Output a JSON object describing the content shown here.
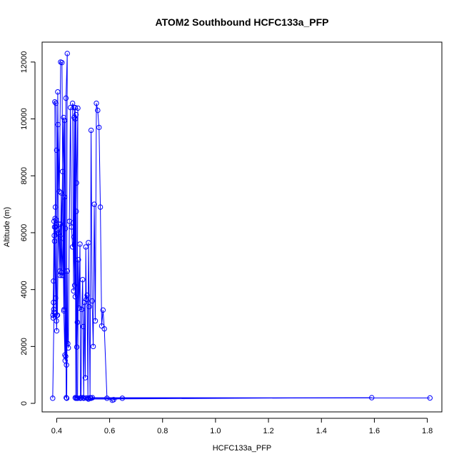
{
  "chart_data": {
    "type": "scatter",
    "title": "ATOM2 Southbound HCFC133a_PFP",
    "xlabel": "HCFC133a_PFP",
    "ylabel": "Altitude (m)",
    "xlim": [
      0.345,
      1.855
    ],
    "ylim": [
      -300,
      12700
    ],
    "x_ticks": [
      0.4,
      0.6,
      0.8,
      1.0,
      1.2,
      1.4,
      1.6,
      1.8
    ],
    "x_tick_labels": [
      "0.4",
      "0.6",
      "0.8",
      "1.0",
      "1.2",
      "1.4",
      "1.6",
      "1.8"
    ],
    "y_ticks": [
      0,
      2000,
      4000,
      6000,
      8000,
      10000,
      12000
    ],
    "y_tick_labels": [
      "0",
      "2000",
      "4000",
      "6000",
      "8000",
      "10000",
      "12000"
    ],
    "grid": false,
    "markers": "open circles connected by lines",
    "color": "#0000ff",
    "series": [
      {
        "x": [
          0.385,
          0.39,
          0.392,
          0.388,
          0.395,
          0.393,
          0.397,
          0.4,
          0.398,
          0.402,
          0.405,
          0.41,
          0.415,
          0.42,
          0.425,
          0.43,
          0.434,
          0.437,
          0.44,
          0.435,
          0.432,
          0.43,
          0.428,
          0.426,
          0.422,
          0.418,
          0.414,
          0.412,
          0.408,
          0.404,
          0.4,
          0.396,
          0.392,
          0.39,
          0.388,
          0.386,
          0.387,
          0.389,
          0.391,
          0.394,
          0.396,
          0.399,
          0.401,
          0.403,
          0.406,
          0.409,
          0.413,
          0.417,
          0.42,
          0.424,
          0.427,
          0.431,
          0.433,
          0.436,
          0.438,
          0.44,
          0.442,
          0.444,
          0.448,
          0.452,
          0.456,
          0.46,
          0.465,
          0.47,
          0.475,
          0.48,
          0.478,
          0.476,
          0.474,
          0.472,
          0.47,
          0.468,
          0.466,
          0.464,
          0.462,
          0.46,
          0.465,
          0.47,
          0.473,
          0.476,
          0.479,
          0.482,
          0.485,
          0.488,
          0.49,
          0.492,
          0.495,
          0.498,
          0.5,
          0.502,
          0.505,
          0.508,
          0.51,
          0.512,
          0.515,
          0.518,
          0.52,
          0.523,
          0.526,
          0.53,
          0.534,
          0.538,
          0.542,
          0.546,
          0.55,
          0.555,
          0.56,
          0.565,
          0.57,
          0.575,
          0.58,
          0.59,
          0.61,
          0.615,
          0.648,
          0.47,
          0.52,
          1.59,
          0.53,
          1.81,
          0.535,
          0.528,
          0.52,
          0.512,
          0.5,
          0.49,
          0.48
        ],
        "y": [
          180,
          3200,
          5700,
          3550,
          6900,
          10600,
          10550,
          8900,
          6450,
          6100,
          9800,
          7450,
          12000,
          11980,
          4500,
          9950,
          1650,
          1350,
          12300,
          10730,
          1500,
          7250,
          3300,
          10050,
          8150,
          4600,
          6300,
          4650,
          5950,
          10950,
          2550,
          3700,
          6200,
          6400,
          4300,
          3100,
          3000,
          3300,
          5900,
          6500,
          6200,
          2900,
          3100,
          3100,
          6000,
          6300,
          4500,
          7400,
          4500,
          5800,
          3250,
          1700,
          6150,
          200,
          180,
          4650,
          2100,
          1950,
          6400,
          10400,
          6200,
          5500,
          5850,
          3750,
          7750,
          10380,
          2850,
          1980,
          6750,
          180,
          10400,
          4150,
          10050,
          3950,
          6350,
          10550,
          10400,
          10000,
          10150,
          180,
          180,
          5050,
          3350,
          5600,
          180,
          200,
          3300,
          4350,
          2700,
          180,
          3550,
          900,
          5500,
          3650,
          3800,
          180,
          5650,
          3400,
          200,
          9600,
          3600,
          2000,
          7000,
          2900,
          10550,
          10300,
          9700,
          6900,
          2720,
          3280,
          2620,
          180,
          110,
          130,
          180,
          200,
          150,
          200,
          180,
          190,
          200,
          180,
          185,
          190,
          200,
          180,
          180
        ]
      }
    ]
  }
}
